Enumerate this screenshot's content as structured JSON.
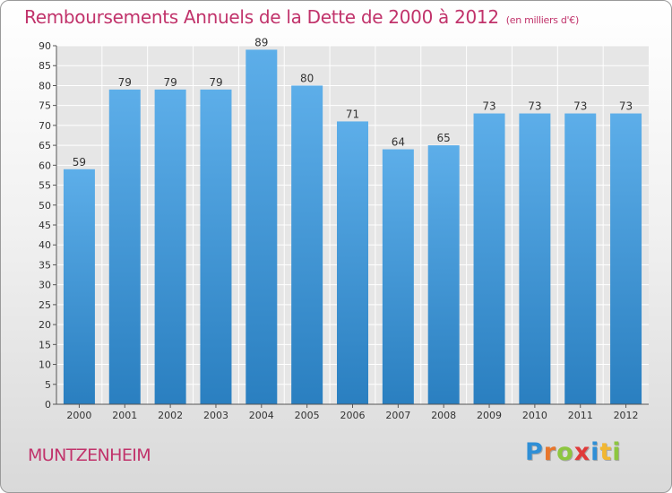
{
  "chart_data": {
    "type": "bar",
    "title": "Remboursements Annuels de la Dette de 2000 à 2012",
    "subtitle": "(en milliers d'€)",
    "categories": [
      "2000",
      "2001",
      "2002",
      "2003",
      "2004",
      "2005",
      "2006",
      "2007",
      "2008",
      "2009",
      "2010",
      "2011",
      "2012"
    ],
    "values": [
      59,
      79,
      79,
      79,
      89,
      80,
      71,
      64,
      65,
      73,
      73,
      73,
      73
    ],
    "ylim": [
      0,
      90
    ],
    "yticks": [
      0,
      5,
      10,
      15,
      20,
      25,
      30,
      35,
      40,
      45,
      50,
      55,
      60,
      65,
      70,
      75,
      80,
      85,
      90
    ],
    "grid": true,
    "bar_color_top": "#5daee9",
    "bar_color_bottom": "#2a7fc0",
    "data_labels": true
  },
  "footer": {
    "city": "MUNTZENHEIM",
    "logo_letters": [
      {
        "char": "P",
        "color": "#2f8fd6"
      },
      {
        "char": "r",
        "color": "#e8762c"
      },
      {
        "char": "o",
        "color": "#8dc63f"
      },
      {
        "char": "x",
        "color": "#e03a3a"
      },
      {
        "char": "i",
        "color": "#2f8fd6"
      },
      {
        "char": "t",
        "color": "#f2b731"
      },
      {
        "char": "i",
        "color": "#8dc63f"
      }
    ]
  },
  "colors": {
    "title": "#c1336b",
    "grid": "#ffffff",
    "plot_background": "#e6e6e6"
  }
}
